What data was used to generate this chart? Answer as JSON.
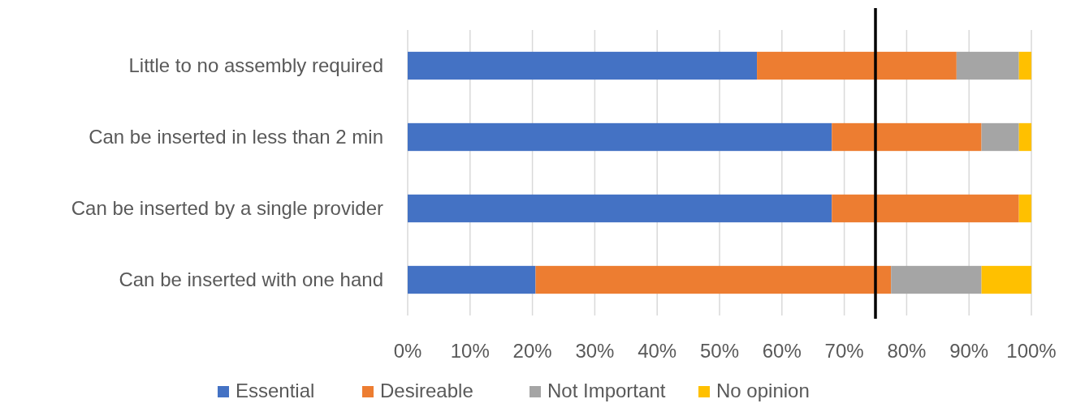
{
  "chart_data": {
    "type": "bar",
    "orientation": "horizontal",
    "stacked": true,
    "categories": [
      "Little to no assembly required",
      "Can be inserted in less than 2 min",
      "Can be inserted by a single provider",
      "Can be inserted with one hand"
    ],
    "series": [
      {
        "name": "Essential",
        "color": "#4472c4",
        "values": [
          56,
          68,
          68,
          20.5
        ]
      },
      {
        "name": "Desireable",
        "color": "#ed7d31",
        "values": [
          32,
          24,
          30,
          57
        ]
      },
      {
        "name": "Not Important",
        "color": "#a5a5a5",
        "values": [
          10,
          6,
          0,
          14.5
        ]
      },
      {
        "name": "No opinion",
        "color": "#ffc000",
        "values": [
          2,
          2,
          2,
          8
        ]
      }
    ],
    "xlim": [
      0,
      100
    ],
    "xticks": [
      {
        "value": 0,
        "label": "0%"
      },
      {
        "value": 10,
        "label": "10%"
      },
      {
        "value": 20,
        "label": "20%"
      },
      {
        "value": 30,
        "label": "30%"
      },
      {
        "value": 40,
        "label": "40%"
      },
      {
        "value": 50,
        "label": "50%"
      },
      {
        "value": 60,
        "label": "60%"
      },
      {
        "value": 70,
        "label": "70%"
      },
      {
        "value": 80,
        "label": "80%"
      },
      {
        "value": 90,
        "label": "90%"
      },
      {
        "value": 100,
        "label": "100%"
      }
    ],
    "ref_lines": [
      {
        "axis": "x",
        "value": 75,
        "color": "#000000"
      }
    ],
    "grid": "x",
    "legend": "bottom"
  }
}
